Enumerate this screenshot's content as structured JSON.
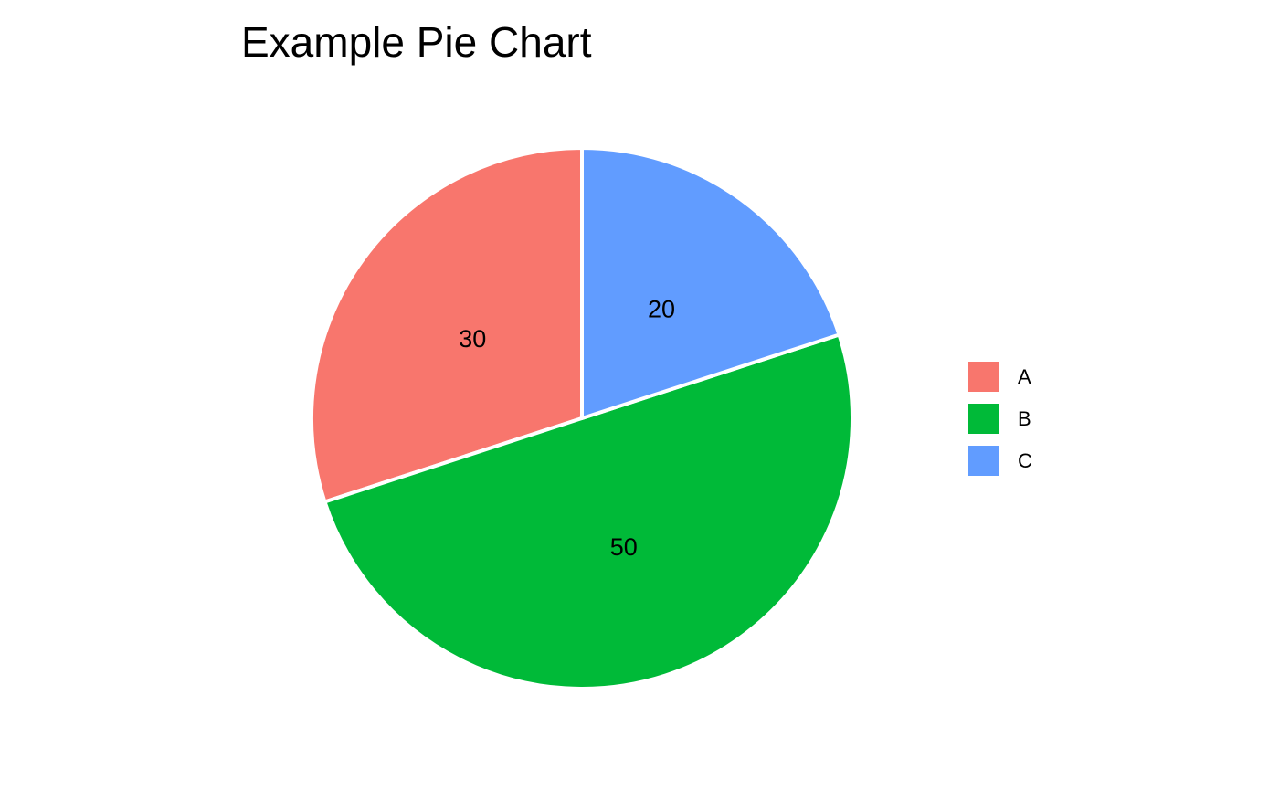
{
  "chart_data": {
    "type": "pie",
    "title": "Example Pie Chart",
    "categories": [
      "A",
      "B",
      "C"
    ],
    "values": [
      30,
      50,
      20
    ],
    "labels": [
      "30",
      "50",
      "20"
    ],
    "colors": [
      "#F8766D",
      "#00BA38",
      "#619CFF"
    ],
    "start": "12 o'clock",
    "direction": "counterclockwise",
    "legend": {
      "position": "right",
      "entries": [
        "A",
        "B",
        "C"
      ]
    }
  }
}
